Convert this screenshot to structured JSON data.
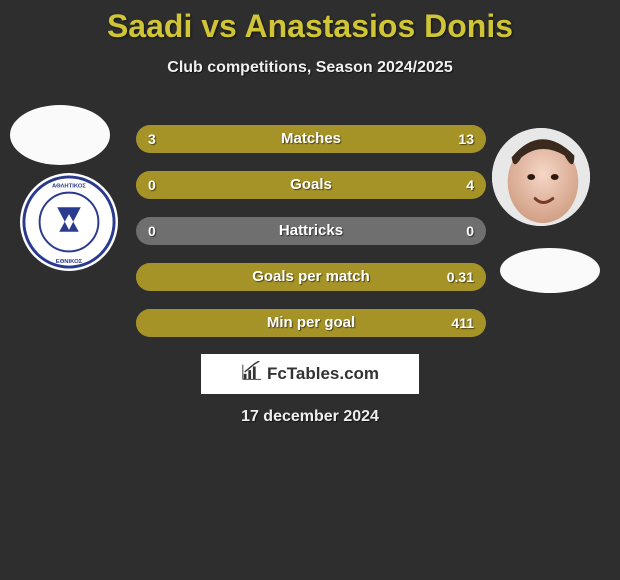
{
  "title": "Saadi vs Anastasios Donis",
  "subtitle": "Club competitions, Season 2024/2025",
  "date_text": "17 december 2024",
  "attribution_text": "FcTables.com",
  "colors": {
    "background": "#2e2e2e",
    "title": "#d0c535",
    "bar_track": "#6f6f6f",
    "bar_fill": "#a69327",
    "text": "#ffffff",
    "attribution_bg": "#ffffff",
    "attribution_text": "#333333"
  },
  "stats": [
    {
      "label": "Matches",
      "left_val": "3",
      "right_val": "13",
      "left_pct": 18.8,
      "right_pct": 81.2
    },
    {
      "label": "Goals",
      "left_val": "0",
      "right_val": "4",
      "left_pct": 0,
      "right_pct": 100
    },
    {
      "label": "Hattricks",
      "left_val": "0",
      "right_val": "0",
      "left_pct": 0,
      "right_pct": 0
    },
    {
      "label": "Goals per match",
      "left_val": "",
      "right_val": "0.31",
      "left_pct": 0,
      "right_pct": 100
    },
    {
      "label": "Min per goal",
      "left_val": "",
      "right_val": "411",
      "left_pct": 0,
      "right_pct": 100
    }
  ]
}
